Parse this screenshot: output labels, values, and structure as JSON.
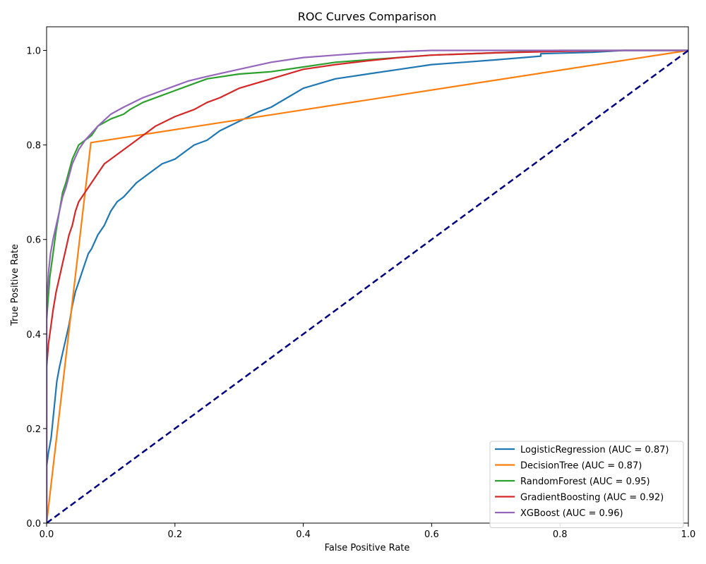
{
  "chart_data": {
    "type": "line",
    "title": "ROC Curves Comparison",
    "xlabel": "False Positive Rate",
    "ylabel": "True Positive Rate",
    "xlim": [
      0.0,
      1.0
    ],
    "ylim": [
      0.0,
      1.05
    ],
    "xticks": [
      "0.0",
      "0.2",
      "0.4",
      "0.6",
      "0.8",
      "1.0"
    ],
    "yticks": [
      "0.0",
      "0.2",
      "0.4",
      "0.6",
      "0.8",
      "1.0"
    ],
    "grid": false,
    "legend_position": "bottom-right",
    "reference_line": {
      "color": "#000080",
      "style": "dashed",
      "x": [
        0.0,
        1.0
      ],
      "y": [
        0.0,
        1.0
      ]
    },
    "series": [
      {
        "name": "LogisticRegression (AUC = 0.87)",
        "color": "#1f77b4",
        "x": [
          0.0,
          0.0,
          0.003,
          0.007,
          0.01,
          0.013,
          0.016,
          0.02,
          0.025,
          0.03,
          0.035,
          0.04,
          0.045,
          0.05,
          0.055,
          0.06,
          0.065,
          0.07,
          0.08,
          0.09,
          0.1,
          0.11,
          0.12,
          0.14,
          0.16,
          0.18,
          0.2,
          0.22,
          0.23,
          0.25,
          0.27,
          0.3,
          0.33,
          0.35,
          0.4,
          0.45,
          0.5,
          0.55,
          0.6,
          0.65,
          0.7,
          0.77,
          0.77,
          0.85,
          0.9,
          1.0
        ],
        "y": [
          0.0,
          0.12,
          0.15,
          0.18,
          0.22,
          0.26,
          0.3,
          0.33,
          0.36,
          0.39,
          0.42,
          0.46,
          0.49,
          0.51,
          0.53,
          0.55,
          0.57,
          0.58,
          0.61,
          0.63,
          0.66,
          0.68,
          0.69,
          0.72,
          0.74,
          0.76,
          0.77,
          0.79,
          0.8,
          0.81,
          0.83,
          0.85,
          0.87,
          0.88,
          0.92,
          0.94,
          0.95,
          0.96,
          0.97,
          0.975,
          0.98,
          0.988,
          0.993,
          0.996,
          1.0,
          1.0
        ]
      },
      {
        "name": "DecisionTree (AUC = 0.87)",
        "color": "#ff7f0e",
        "x": [
          0.0,
          0.069,
          1.0
        ],
        "y": [
          0.0,
          0.805,
          1.0
        ]
      },
      {
        "name": "RandomForest (AUC = 0.95)",
        "color": "#2ca02c",
        "x": [
          0.0,
          0.0,
          0.005,
          0.01,
          0.015,
          0.02,
          0.025,
          0.03,
          0.04,
          0.05,
          0.06,
          0.07,
          0.08,
          0.1,
          0.12,
          0.13,
          0.15,
          0.18,
          0.2,
          0.25,
          0.3,
          0.35,
          0.4,
          0.45,
          0.5,
          0.6,
          0.7,
          0.8,
          0.9,
          1.0
        ],
        "y": [
          0.0,
          0.43,
          0.52,
          0.57,
          0.62,
          0.66,
          0.7,
          0.72,
          0.77,
          0.8,
          0.81,
          0.82,
          0.84,
          0.855,
          0.865,
          0.875,
          0.89,
          0.905,
          0.915,
          0.94,
          0.95,
          0.955,
          0.965,
          0.975,
          0.98,
          0.99,
          0.995,
          1.0,
          1.0,
          1.0
        ]
      },
      {
        "name": "GradientBoosting (AUC = 0.92)",
        "color": "#d62728",
        "x": [
          0.0,
          0.0,
          0.003,
          0.006,
          0.01,
          0.015,
          0.02,
          0.025,
          0.03,
          0.035,
          0.04,
          0.045,
          0.05,
          0.06,
          0.07,
          0.08,
          0.09,
          0.1,
          0.11,
          0.13,
          0.15,
          0.17,
          0.2,
          0.23,
          0.25,
          0.27,
          0.3,
          0.35,
          0.4,
          0.45,
          0.5,
          0.55,
          0.6,
          0.7,
          0.8,
          0.9,
          1.0
        ],
        "y": [
          0.0,
          0.33,
          0.38,
          0.41,
          0.45,
          0.49,
          0.52,
          0.55,
          0.58,
          0.61,
          0.63,
          0.66,
          0.68,
          0.7,
          0.72,
          0.74,
          0.76,
          0.77,
          0.78,
          0.8,
          0.82,
          0.84,
          0.86,
          0.875,
          0.89,
          0.9,
          0.92,
          0.94,
          0.96,
          0.97,
          0.978,
          0.985,
          0.99,
          0.995,
          0.998,
          1.0,
          1.0
        ]
      },
      {
        "name": "XGBoost (AUC = 0.96)",
        "color": "#9467bd",
        "x": [
          0.0,
          0.0,
          0.003,
          0.006,
          0.01,
          0.015,
          0.02,
          0.025,
          0.03,
          0.04,
          0.05,
          0.06,
          0.07,
          0.08,
          0.1,
          0.12,
          0.15,
          0.18,
          0.2,
          0.22,
          0.25,
          0.3,
          0.35,
          0.4,
          0.45,
          0.5,
          0.6,
          0.7,
          0.8,
          0.9,
          1.0
        ],
        "y": [
          0.0,
          0.46,
          0.53,
          0.57,
          0.6,
          0.63,
          0.66,
          0.69,
          0.71,
          0.76,
          0.79,
          0.81,
          0.825,
          0.84,
          0.865,
          0.88,
          0.9,
          0.915,
          0.925,
          0.935,
          0.945,
          0.96,
          0.975,
          0.985,
          0.99,
          0.995,
          1.0,
          1.0,
          1.0,
          1.0,
          1.0
        ]
      }
    ]
  }
}
